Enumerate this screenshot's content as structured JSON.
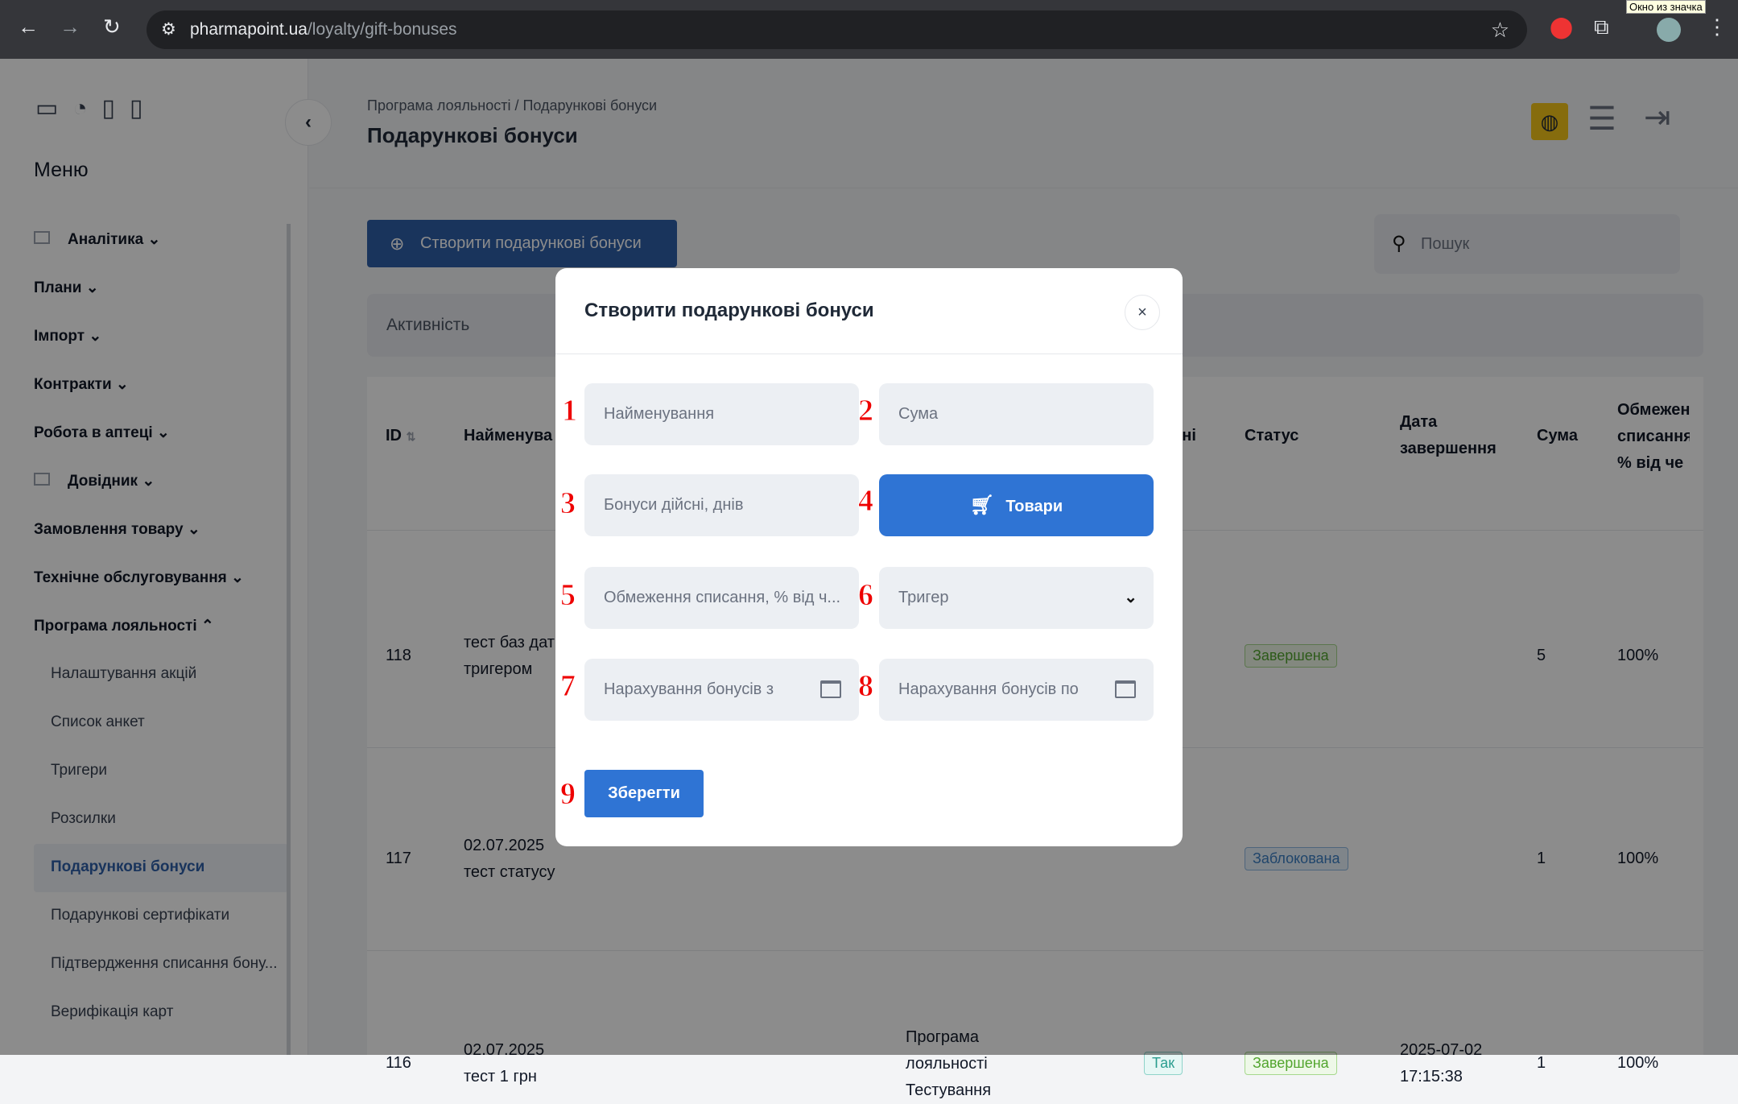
{
  "browser": {
    "domain": "pharmapoint.ua",
    "path": "/loyalty/gift-bonuses",
    "tooltip": "Окно из значка"
  },
  "sidebar": {
    "menu_title": "Меню",
    "items": [
      {
        "label": "Аналітика ⌄"
      },
      {
        "label": "Плани ⌄"
      },
      {
        "label": "Імпорт ⌄"
      },
      {
        "label": "Контракти ⌄"
      },
      {
        "label": "Робота в аптеці ⌄"
      },
      {
        "label": "Довідник ⌄"
      },
      {
        "label": "Замовлення товару ⌄"
      },
      {
        "label": "Технічне обслуговування ⌄"
      },
      {
        "label": "Програма лояльності ⌃"
      }
    ],
    "subitems": [
      {
        "label": "Налаштування акцій"
      },
      {
        "label": "Список анкет"
      },
      {
        "label": "Тригери"
      },
      {
        "label": "Розсилки"
      },
      {
        "label": "Подарункові бонуси",
        "active": true
      },
      {
        "label": "Подарункові сертифікати"
      },
      {
        "label": "Підтвердження списання бону..."
      },
      {
        "label": "Верифікація карт"
      }
    ]
  },
  "header": {
    "breadcrumb": "Програма лояльності / Подарункові бонуси",
    "title": "Подарункові бонуси"
  },
  "toolbar": {
    "create_label": "Створити подарункові бонуси",
    "search_placeholder": "Пошук",
    "filter_label": "Активність"
  },
  "table": {
    "headers": {
      "id": "ID",
      "name": "Найменува",
      "active": "вні",
      "status": "Статус",
      "end_date": "Дата завершення",
      "sum": "Сума",
      "limit": "Обмеження списання, % від че"
    },
    "rows": [
      {
        "id": "118",
        "name": "тест баз дат тригером",
        "program": "",
        "active": "",
        "status": "Завершена",
        "end_date": "",
        "sum": "5",
        "limit": "100%"
      },
      {
        "id": "117",
        "name": "02.07.2025 тест статусу",
        "program": "",
        "active": "",
        "status": "Заблокована",
        "end_date": "",
        "sum": "1",
        "limit": "100%"
      },
      {
        "id": "116",
        "name": "02.07.2025 тест 1 грн",
        "program": "Програма лояльності Тестування",
        "active": "Так",
        "status": "Завершена",
        "end_date": "2025-07-02 17:15:38",
        "sum": "1",
        "limit": "100%"
      }
    ]
  },
  "modal": {
    "title": "Створити подарункові бонуси",
    "fields": {
      "name": "Найменування",
      "sum": "Сума",
      "days": "Бонуси дійсні, днів",
      "products": "Товари",
      "limit": "Обмеження списання, % від ч...",
      "trigger": "Тригер",
      "from": "Нарахування бонусів з",
      "to": "Нарахування бонусів по"
    },
    "save": "Зберегти",
    "markers": [
      "1",
      "2",
      "3",
      "4",
      "5",
      "6",
      "7",
      "8",
      "9"
    ]
  },
  "colors": {
    "primary": "#2f74d4",
    "success": "#52a52e",
    "info": "#3b7fc4"
  }
}
